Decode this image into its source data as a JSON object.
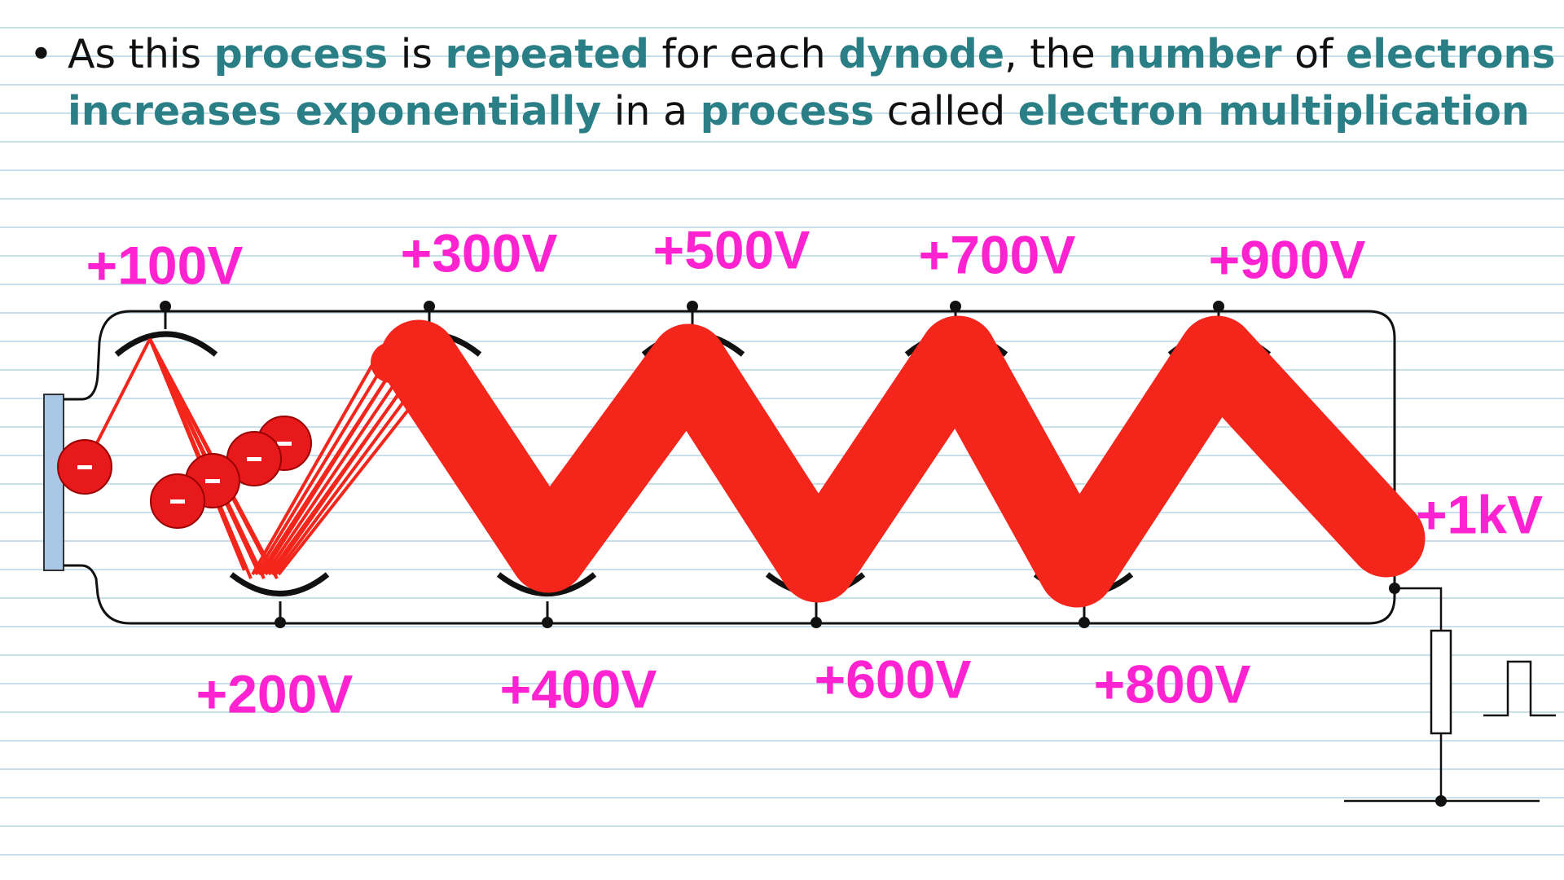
{
  "bullet": {
    "lines": [
      [
        "As this ",
        "process",
        " is ",
        "repeated",
        " for each ",
        "dynode",
        ", the ",
        "number",
        " of ",
        "electrons"
      ],
      [
        "increases exponentially",
        " in a ",
        "process",
        " called ",
        "electron multiplication"
      ]
    ]
  },
  "labels": {
    "top": [
      "+100V",
      "+300V",
      "+500V",
      "+700V",
      "+900V"
    ],
    "bottom": [
      "+200V",
      "+400V",
      "+600V",
      "+800V"
    ],
    "anode": "+1kV"
  }
}
